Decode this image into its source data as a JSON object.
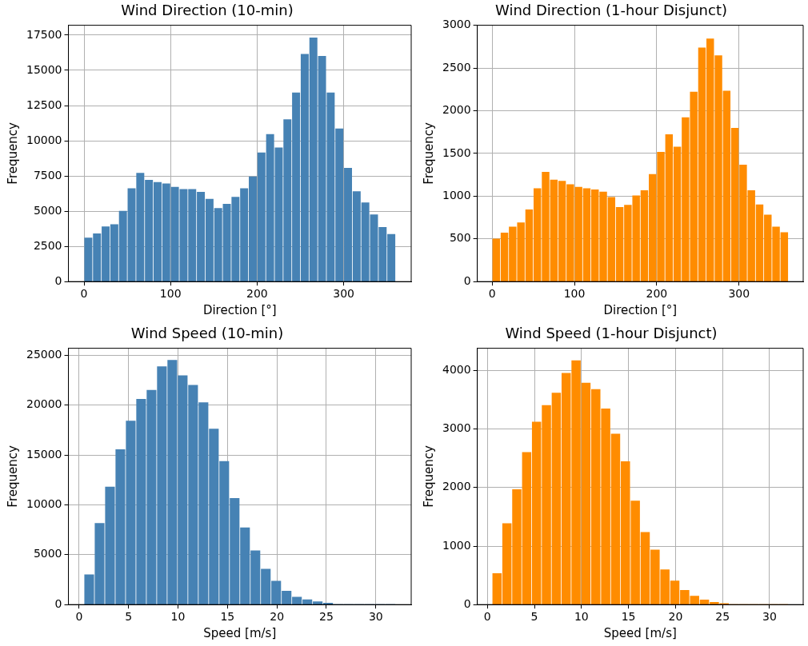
{
  "chart_data": [
    {
      "type": "histogram",
      "title": "Wind Direction (10-min)",
      "xlabel": "Direction [°]",
      "ylabel": "Frequency",
      "color": "#4682b4",
      "bins": [
        0,
        10,
        20,
        30,
        40,
        50,
        60,
        70,
        80,
        90,
        100,
        110,
        120,
        130,
        140,
        150,
        160,
        170,
        180,
        190,
        200,
        210,
        220,
        230,
        240,
        250,
        260,
        270,
        280,
        290,
        300,
        310,
        320,
        330,
        340,
        350,
        360
      ],
      "values": [
        3100,
        3400,
        3900,
        4050,
        5000,
        6600,
        7700,
        7200,
        7050,
        6950,
        6700,
        6550,
        6550,
        6350,
        5850,
        5200,
        5500,
        6000,
        6600,
        7450,
        9150,
        10450,
        9500,
        11500,
        13400,
        16150,
        17300,
        16000,
        13400,
        10850,
        8050,
        6400,
        5600,
        4750,
        3850,
        3350
      ],
      "xlim": [
        -18,
        378
      ],
      "xticks": [
        0,
        100,
        200,
        300
      ],
      "ylim": [
        0,
        18200
      ],
      "yticks": [
        0,
        2500,
        5000,
        7500,
        10000,
        12500,
        15000,
        17500
      ],
      "grid": true
    },
    {
      "type": "histogram",
      "title": "Wind Direction (1-hour Disjunct)",
      "xlabel": "Direction [°]",
      "ylabel": "Frequency",
      "color": "#ff8c00",
      "bins": [
        0,
        10,
        20,
        30,
        40,
        50,
        60,
        70,
        80,
        90,
        100,
        110,
        120,
        130,
        140,
        150,
        160,
        170,
        180,
        190,
        200,
        210,
        220,
        230,
        240,
        250,
        260,
        270,
        280,
        290,
        300,
        310,
        320,
        330,
        340,
        350,
        360
      ],
      "values": [
        500,
        570,
        640,
        690,
        840,
        1090,
        1280,
        1190,
        1175,
        1135,
        1105,
        1090,
        1075,
        1050,
        985,
        870,
        895,
        1005,
        1065,
        1255,
        1515,
        1720,
        1575,
        1920,
        2220,
        2735,
        2840,
        2645,
        2230,
        1795,
        1365,
        1065,
        900,
        780,
        640,
        575
      ],
      "xlim": [
        -18,
        378
      ],
      "xticks": [
        0,
        100,
        200,
        300
      ],
      "ylim": [
        0,
        3000
      ],
      "yticks": [
        0,
        500,
        1000,
        1500,
        2000,
        2500,
        3000
      ],
      "grid": true
    },
    {
      "type": "histogram",
      "title": "Wind Speed (10-min)",
      "xlabel": "Speed [m/s]",
      "ylabel": "Frequency",
      "color": "#4682b4",
      "bins": [
        0.5,
        1.55,
        2.6,
        3.65,
        4.7,
        5.75,
        6.8,
        7.85,
        8.9,
        9.95,
        11,
        12.05,
        13.1,
        14.15,
        15.2,
        16.25,
        17.3,
        18.35,
        19.4,
        20.45,
        21.5,
        22.55,
        23.6,
        24.65,
        25.7,
        26.75,
        27.8,
        28.85,
        29.9,
        30.95,
        32
      ],
      "values": [
        3000,
        8150,
        11800,
        15550,
        18400,
        20600,
        21500,
        23850,
        24500,
        22950,
        22000,
        20250,
        17600,
        14350,
        10650,
        7700,
        5400,
        3550,
        2350,
        1350,
        750,
        500,
        300,
        150,
        0,
        0,
        0,
        0,
        0,
        0
      ],
      "xlim": [
        -1.075,
        33.575
      ],
      "xticks": [
        0,
        5,
        10,
        15,
        20,
        25,
        30
      ],
      "ylim": [
        0,
        25700
      ],
      "yticks": [
        0,
        5000,
        10000,
        15000,
        20000,
        25000
      ],
      "grid": true
    },
    {
      "type": "histogram",
      "title": "Wind Speed (1-hour Disjunct)",
      "xlabel": "Speed [m/s]",
      "ylabel": "Frequency",
      "color": "#ff8c00",
      "bins": [
        0.5,
        1.55,
        2.6,
        3.65,
        4.7,
        5.75,
        6.8,
        7.85,
        8.9,
        9.95,
        11,
        12.05,
        13.1,
        14.15,
        15.2,
        16.25,
        17.3,
        18.35,
        19.4,
        20.45,
        21.5,
        22.55,
        23.6,
        24.65,
        25.7,
        26.75,
        27.8,
        28.85,
        29.9,
        30.95,
        32
      ],
      "values": [
        530,
        1385,
        1965,
        2600,
        3120,
        3405,
        3615,
        3955,
        4170,
        3785,
        3675,
        3345,
        2915,
        2445,
        1770,
        1235,
        935,
        595,
        405,
        245,
        145,
        80,
        40,
        20,
        0,
        0,
        0,
        0,
        0,
        0
      ],
      "xlim": [
        -1.075,
        33.575
      ],
      "xticks": [
        0,
        5,
        10,
        15,
        20,
        25,
        30
      ],
      "ylim": [
        0,
        4380
      ],
      "yticks": [
        0,
        1000,
        2000,
        3000,
        4000
      ],
      "grid": true
    }
  ]
}
